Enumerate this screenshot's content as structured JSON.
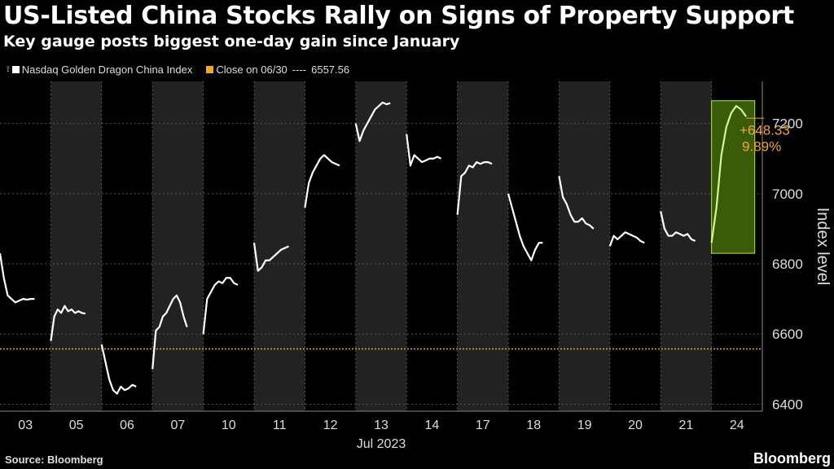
{
  "chart_data": {
    "type": "line",
    "title": "US-Listed China Stocks Rally on Signs of Property Support",
    "subtitle": "Key gauge posts biggest one-day gain since January",
    "series": [
      {
        "name": "Nasdaq Golden Dragon China Index",
        "color": "#ffffff",
        "days": [
          {
            "day": "03",
            "values": [
              6830,
              6760,
              6710,
              6700,
              6690,
              6695,
              6700,
              6698,
              6700,
              6700
            ]
          },
          {
            "day": "05",
            "values": [
              6580,
              6650,
              6670,
              6660,
              6680,
              6665,
              6670,
              6660,
              6665,
              6660,
              6658
            ]
          },
          {
            "day": "06",
            "values": [
              6570,
              6520,
              6470,
              6440,
              6430,
              6450,
              6440,
              6445,
              6455,
              6450
            ]
          },
          {
            "day": "07",
            "values": [
              6500,
              6610,
              6620,
              6650,
              6660,
              6680,
              6700,
              6710,
              6690,
              6650,
              6620
            ]
          },
          {
            "day": "10",
            "values": [
              6600,
              6700,
              6720,
              6740,
              6750,
              6745,
              6760,
              6760,
              6745,
              6740
            ]
          },
          {
            "day": "11",
            "values": [
              6860,
              6780,
              6790,
              6810,
              6810,
              6820,
              6830,
              6840,
              6845,
              6850
            ]
          },
          {
            "day": "12",
            "values": [
              6960,
              7030,
              7060,
              7080,
              7100,
              7110,
              7100,
              7090,
              7085,
              7080
            ]
          },
          {
            "day": "13",
            "values": [
              7200,
              7150,
              7180,
              7200,
              7220,
              7240,
              7250,
              7260,
              7255,
              7258
            ]
          },
          {
            "day": "14",
            "values": [
              7170,
              7080,
              7110,
              7100,
              7090,
              7095,
              7100,
              7100,
              7105,
              7100
            ]
          },
          {
            "day": "17",
            "values": [
              6940,
              7050,
              7060,
              7080,
              7075,
              7090,
              7085,
              7090,
              7090,
              7085
            ]
          },
          {
            "day": "18",
            "values": [
              7000,
              6960,
              6920,
              6880,
              6850,
              6830,
              6810,
              6840,
              6860,
              6860
            ]
          },
          {
            "day": "19",
            "values": [
              7050,
              6990,
              6970,
              6940,
              6920,
              6920,
              6930,
              6915,
              6910,
              6900
            ]
          },
          {
            "day": "20",
            "values": [
              6850,
              6880,
              6870,
              6880,
              6890,
              6885,
              6880,
              6875,
              6865,
              6860
            ]
          },
          {
            "day": "21",
            "values": [
              6950,
              6900,
              6880,
              6880,
              6890,
              6885,
              6880,
              6885,
              6870,
              6865
            ]
          },
          {
            "day": "24",
            "values": [
              6860,
              6960,
              7110,
              7190,
              7230,
              7250,
              7240,
              7220
            ]
          }
        ]
      }
    ],
    "reference_line": {
      "name": "Close on 06/30",
      "value": 6557.56,
      "value_label": "6557.56",
      "color": "#f5a623"
    },
    "annotation": {
      "change": "+648.33",
      "percent": "9.89%",
      "color": "#f5a623",
      "highlight_day": "24",
      "highlight_range": [
        6830,
        7265
      ]
    },
    "x_ticks": [
      "03",
      "05",
      "06",
      "07",
      "10",
      "11",
      "12",
      "13",
      "14",
      "17",
      "18",
      "19",
      "20",
      "21",
      "24"
    ],
    "xlabel": "Jul 2023",
    "ylabel": "Index level",
    "yticks": [
      6400,
      6600,
      6800,
      7000,
      7200
    ],
    "ylim": [
      6380,
      7320
    ]
  },
  "legend": {
    "series_label": "Nasdaq Golden Dragon China Index",
    "reference_label": "Close on 06/30",
    "reference_dashes": "----",
    "reference_value": "6557.56"
  },
  "footer": {
    "source": "Source: Bloomberg",
    "brand": "Bloomberg"
  }
}
